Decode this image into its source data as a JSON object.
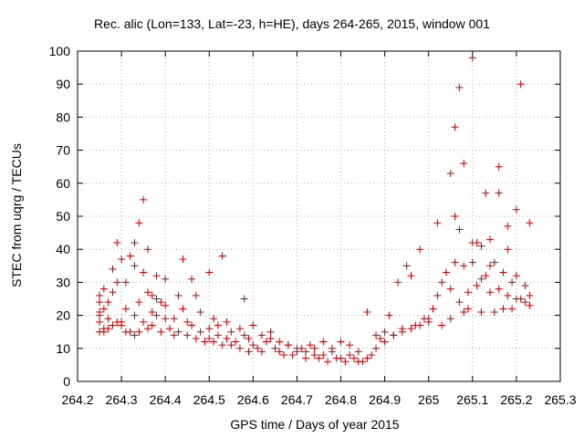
{
  "chart_data": {
    "type": "scatter",
    "title": "Rec. alic (Lon=133, Lat=-23, h=HE), days 264-265, 2015, window 001",
    "xlabel": "GPS time / Days of year 2015",
    "ylabel": "STEC from uqrg / TECUs",
    "xlim": [
      264.2,
      265.3
    ],
    "ylim": [
      0,
      100
    ],
    "xticks": [
      "264.2",
      "264.3",
      "264.4",
      "264.5",
      "264.6",
      "264.7",
      "264.8",
      "264.9",
      "265",
      "265.1",
      "265.2",
      "265.3"
    ],
    "yticks": [
      "0",
      "10",
      "20",
      "30",
      "40",
      "50",
      "60",
      "70",
      "80",
      "90",
      "100"
    ],
    "grid": true,
    "marker": "+",
    "color": "#cc0000",
    "series": [
      {
        "x": [
          264.25,
          264.25,
          264.25,
          264.25,
          264.25,
          264.26,
          264.26,
          264.26,
          264.27,
          264.27,
          264.28,
          264.28,
          264.28,
          264.29,
          264.29,
          264.29,
          264.3,
          264.3,
          264.31,
          264.31,
          264.32,
          264.32,
          264.33,
          264.33,
          264.33,
          264.34,
          264.34,
          264.34,
          264.35,
          264.35,
          264.36,
          264.36,
          264.37,
          264.37,
          264.38,
          264.38,
          264.39,
          264.39,
          264.4,
          264.4,
          264.41,
          264.42,
          264.43,
          264.44,
          264.44,
          264.45,
          264.46,
          264.47,
          264.47,
          264.48,
          264.49,
          264.5,
          264.5,
          264.51,
          264.52,
          264.53,
          264.53,
          264.54,
          264.55,
          264.56,
          264.57,
          264.58,
          264.58,
          264.59,
          264.6,
          264.61,
          264.62,
          264.63,
          264.64,
          264.65,
          264.66,
          264.67,
          264.68,
          264.69,
          264.7,
          264.71,
          264.72,
          264.73,
          264.74,
          264.75,
          264.76,
          264.77,
          264.78,
          264.79,
          264.8,
          264.81,
          264.82,
          264.83,
          264.84,
          264.85,
          264.86,
          264.87,
          264.88,
          264.89,
          264.9,
          264.91,
          264.92,
          264.93,
          264.94,
          264.95,
          264.96,
          264.97,
          264.98,
          264.99,
          265.0,
          265.01,
          265.02,
          265.03,
          265.04,
          265.05,
          265.06,
          265.07,
          265.08,
          265.09,
          265.1,
          265.11,
          265.12,
          265.13,
          265.14,
          265.15,
          265.16,
          265.17,
          265.18,
          265.19,
          265.2,
          265.21,
          265.22,
          265.23,
          265.23
        ],
        "y": [
          15,
          20,
          24,
          21,
          26,
          15,
          22,
          28,
          16,
          24,
          17,
          27,
          34,
          18,
          30,
          42,
          18,
          37,
          15,
          30,
          15,
          38,
          14,
          35,
          42,
          48,
          15,
          24,
          55,
          33,
          16,
          40,
          17,
          26,
          20,
          32,
          15,
          24,
          19,
          31,
          16,
          14,
          15,
          37,
          22,
          14,
          31,
          13,
          26,
          21,
          12,
          13,
          33,
          12,
          17,
          11,
          38,
          13,
          11,
          12,
          10,
          14,
          25,
          9,
          11,
          10,
          9,
          12,
          15,
          10,
          9,
          8,
          11,
          8,
          9,
          10,
          7,
          11,
          8,
          7,
          12,
          6,
          10,
          7,
          12,
          6,
          11,
          7,
          9,
          6,
          21,
          8,
          14,
          13,
          15,
          20,
          14,
          30,
          16,
          35,
          32,
          17,
          40,
          19,
          18,
          22,
          48,
          17,
          33,
          19,
          50,
          46,
          21,
          22,
          98,
          42,
          21,
          57,
          27,
          21,
          57,
          22,
          47,
          22,
          25,
          90,
          24,
          23,
          48
        ],
        "name": ""
      }
    ],
    "extra_points": {
      "x": [
        264.25,
        264.26,
        264.27,
        264.3,
        264.31,
        264.33,
        264.35,
        264.36,
        264.37,
        264.38,
        264.4,
        264.42,
        264.43,
        264.45,
        264.46,
        264.48,
        264.5,
        264.51,
        264.52,
        264.54,
        264.55,
        264.57,
        264.59,
        264.6,
        264.62,
        264.64,
        264.66,
        264.68,
        264.7,
        264.72,
        264.74,
        264.76,
        264.78,
        264.8,
        264.82,
        264.84,
        264.86,
        264.88,
        264.9,
        264.92,
        264.94,
        264.96,
        264.98,
        265.0,
        265.02,
        265.03,
        265.05,
        265.06,
        265.07,
        265.08,
        265.09,
        265.1,
        265.11,
        265.12,
        265.13,
        265.14,
        265.15,
        265.16,
        265.17,
        265.18,
        265.19,
        265.2,
        265.21,
        265.22,
        265.23,
        265.05,
        265.06,
        265.07,
        265.08,
        265.1,
        265.12,
        265.14,
        265.16,
        265.18,
        265.2
      ],
      "y": [
        18,
        16,
        19,
        17,
        22,
        20,
        18,
        27,
        21,
        25,
        23,
        19,
        26,
        18,
        17,
        15,
        16,
        19,
        14,
        18,
        15,
        16,
        13,
        17,
        14,
        13,
        12,
        11,
        10,
        9,
        10,
        8,
        9,
        7,
        8,
        6,
        7,
        10,
        12,
        14,
        15,
        16,
        17,
        19,
        26,
        30,
        28,
        36,
        24,
        35,
        27,
        36,
        29,
        31,
        32,
        35,
        36,
        28,
        33,
        26,
        30,
        32,
        25,
        29,
        26,
        63,
        77,
        89,
        66,
        42,
        41,
        43,
        65,
        40,
        52
      ]
    }
  }
}
